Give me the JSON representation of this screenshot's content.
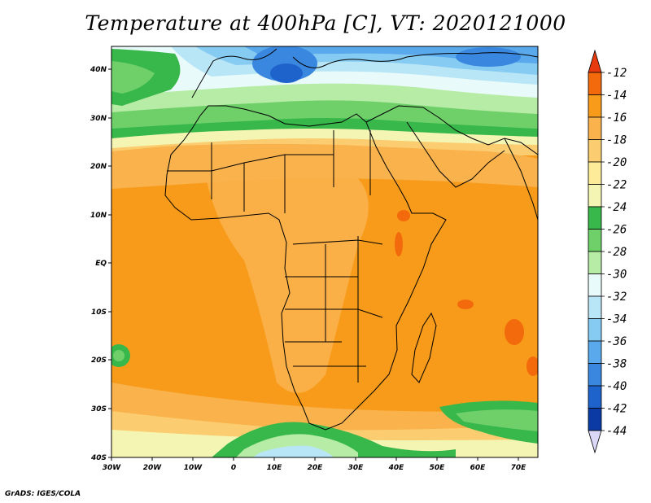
{
  "title": "Temperature at 400hPa [C], VT: 2020121000",
  "footer": "GrADS: IGES/COLA",
  "map": {
    "lon_labels": [
      "30W",
      "20W",
      "10W",
      "0",
      "10E",
      "20E",
      "30E",
      "40E",
      "50E",
      "60E",
      "70E"
    ],
    "lat_labels": [
      "40N",
      "30N",
      "20N",
      "10N",
      "EQ",
      "10S",
      "20S",
      "30S",
      "40S"
    ]
  },
  "colorbar": {
    "labels": [
      "-12",
      "-14",
      "-16",
      "-18",
      "-20",
      "-22",
      "-24",
      "-26",
      "-28",
      "-30",
      "-32",
      "-34",
      "-36",
      "-38",
      "-40",
      "-42",
      "-44"
    ],
    "colors": {
      "above": "#e83a0f",
      "b12_14": "#f26a0c",
      "b14_16": "#f89b1a",
      "b16_18": "#f9b24c",
      "b18_20": "#fbcd70",
      "b20_22": "#fdeb9a",
      "b22_24": "#f4f5b2",
      "b24_26": "#38b84a",
      "b26_28": "#6fd06a",
      "b28_30": "#b6eca6",
      "b30_32": "#e8fafa",
      "b32_34": "#b9e6f6",
      "b34_36": "#86cbf2",
      "b36_38": "#59a9ec",
      "b38_40": "#3a87e0",
      "b40_42": "#1e62cc",
      "b42_44": "#0c3aa5",
      "below": "#0b1b74",
      "under_tip": "#dcd8f8"
    }
  }
}
